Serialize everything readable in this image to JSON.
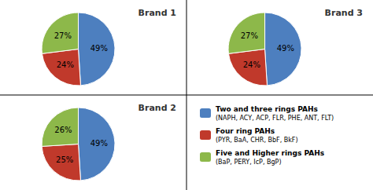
{
  "chart_data": [
    {
      "type": "pie",
      "title": "Brand 1",
      "categories": [
        "Two and three rings PAHs\n(NAPH, ACY, ACP, FLR, PHE, ANT, FLT)",
        "Four ring PAHs\n(PYR, BaA, CHR, BbF, BkF)",
        "Five and Higher rings PAHs\n(BaP, PERY, IcP, BgP)"
      ],
      "values": [
        49,
        24,
        27
      ],
      "value_labels": [
        "49%",
        "24%",
        "27%"
      ],
      "colors": [
        "#4D7FBF",
        "#C0392B",
        "#8DB84A"
      ],
      "data_labels": true,
      "legend": "lower right"
    },
    {
      "type": "pie",
      "title": "Brand 3",
      "categories": [
        "Two and three rings PAHs\n(NAPH, ACY, ACP, FLR, PHE, ANT, FLT)",
        "Four ring PAHs\n(PYR, BaA, CHR, BbF, BkF)",
        "Five and Higher rings PAHs\n(BaP, PERY, IcP, BgP)"
      ],
      "values": [
        49,
        24,
        27
      ],
      "value_labels": [
        "49%",
        "24%",
        "27%"
      ],
      "colors": [
        "#4D7FBF",
        "#C0392B",
        "#8DB84A"
      ],
      "data_labels": true,
      "legend": "lower right"
    },
    {
      "type": "pie",
      "title": "Brand 2",
      "categories": [
        "Two and three rings PAHs\n(NAPH, ACY, ACP, FLR, PHE, ANT, FLT)",
        "Four ring PAHs\n(PYR, BaA, CHR, BbF, BkF)",
        "Five and Higher rings PAHs\n(BaP, PERY, IcP, BgP)"
      ],
      "values": [
        49,
        25,
        26
      ],
      "value_labels": [
        "49%",
        "25%",
        "26%"
      ],
      "colors": [
        "#4D7FBF",
        "#C0392B",
        "#8DB84A"
      ],
      "data_labels": true,
      "legend": "lower right"
    }
  ]
}
